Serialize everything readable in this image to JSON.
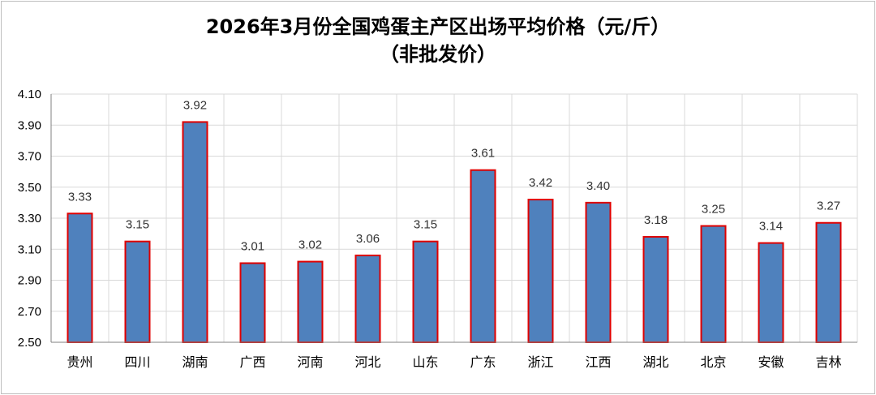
{
  "chart_data": {
    "type": "bar",
    "title": "2026年3月份全国鸡蛋主产区出场平均价格（元/斤）",
    "subtitle": "（非批发价）",
    "categories": [
      "贵州",
      "四川",
      "湖南",
      "广西",
      "河南",
      "河北",
      "山东",
      "广东",
      "浙江",
      "江西",
      "湖北",
      "北京",
      "安徽",
      "吉林"
    ],
    "values": [
      3.33,
      3.15,
      3.92,
      3.01,
      3.02,
      3.06,
      3.15,
      3.61,
      3.42,
      3.4,
      3.18,
      3.25,
      3.14,
      3.27
    ],
    "ylim": [
      2.5,
      4.1
    ],
    "yticks": [
      "2.50",
      "2.70",
      "2.90",
      "3.10",
      "3.30",
      "3.50",
      "3.70",
      "3.90",
      "4.10"
    ],
    "grid": true,
    "legend": "none",
    "bar_fill": "#4f81bd",
    "bar_stroke": "#e00000",
    "grid_color": "#d9d9d9"
  }
}
